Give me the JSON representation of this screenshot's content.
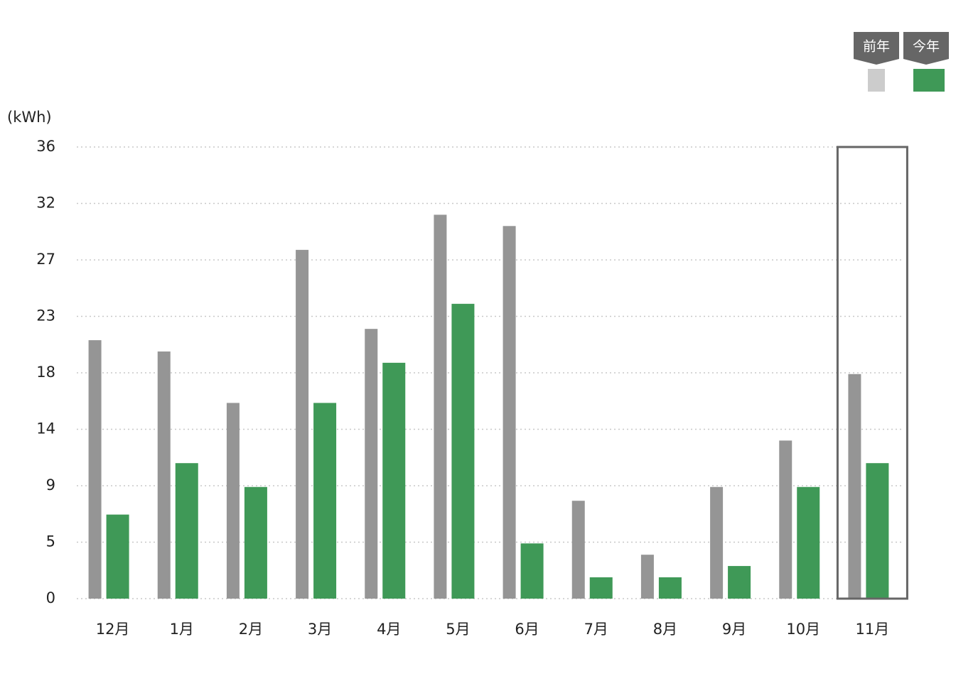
{
  "chart_data": {
    "type": "bar",
    "y_unit": "(kWh)",
    "categories": [
      "12月",
      "1月",
      "2月",
      "3月",
      "4月",
      "5月",
      "6月",
      "7月",
      "8月",
      "9月",
      "10月",
      "11月"
    ],
    "series": [
      {
        "name": "前年",
        "color": "#959595",
        "swatch_color": "#cccccc",
        "values": [
          20.6,
          19.7,
          15.6,
          27.8,
          21.5,
          30.6,
          29.7,
          7.8,
          3.5,
          8.9,
          12.6,
          17.9
        ]
      },
      {
        "name": "今年",
        "color": "#3f9957",
        "swatch_color": "#3f9957",
        "values": [
          6.7,
          10.8,
          8.9,
          15.6,
          18.8,
          23.5,
          4.4,
          1.7,
          1.7,
          2.6,
          8.9,
          10.8
        ]
      }
    ],
    "ylim": [
      0,
      36
    ],
    "yticks": [
      0,
      {
        "value": 4.5,
        "label": "5"
      },
      9,
      {
        "value": 13.5,
        "label": "14"
      },
      18,
      {
        "value": 22.5,
        "label": "23"
      },
      27,
      {
        "value": 31.5,
        "label": "32"
      },
      36
    ],
    "grid": true,
    "highlight": "11月"
  }
}
